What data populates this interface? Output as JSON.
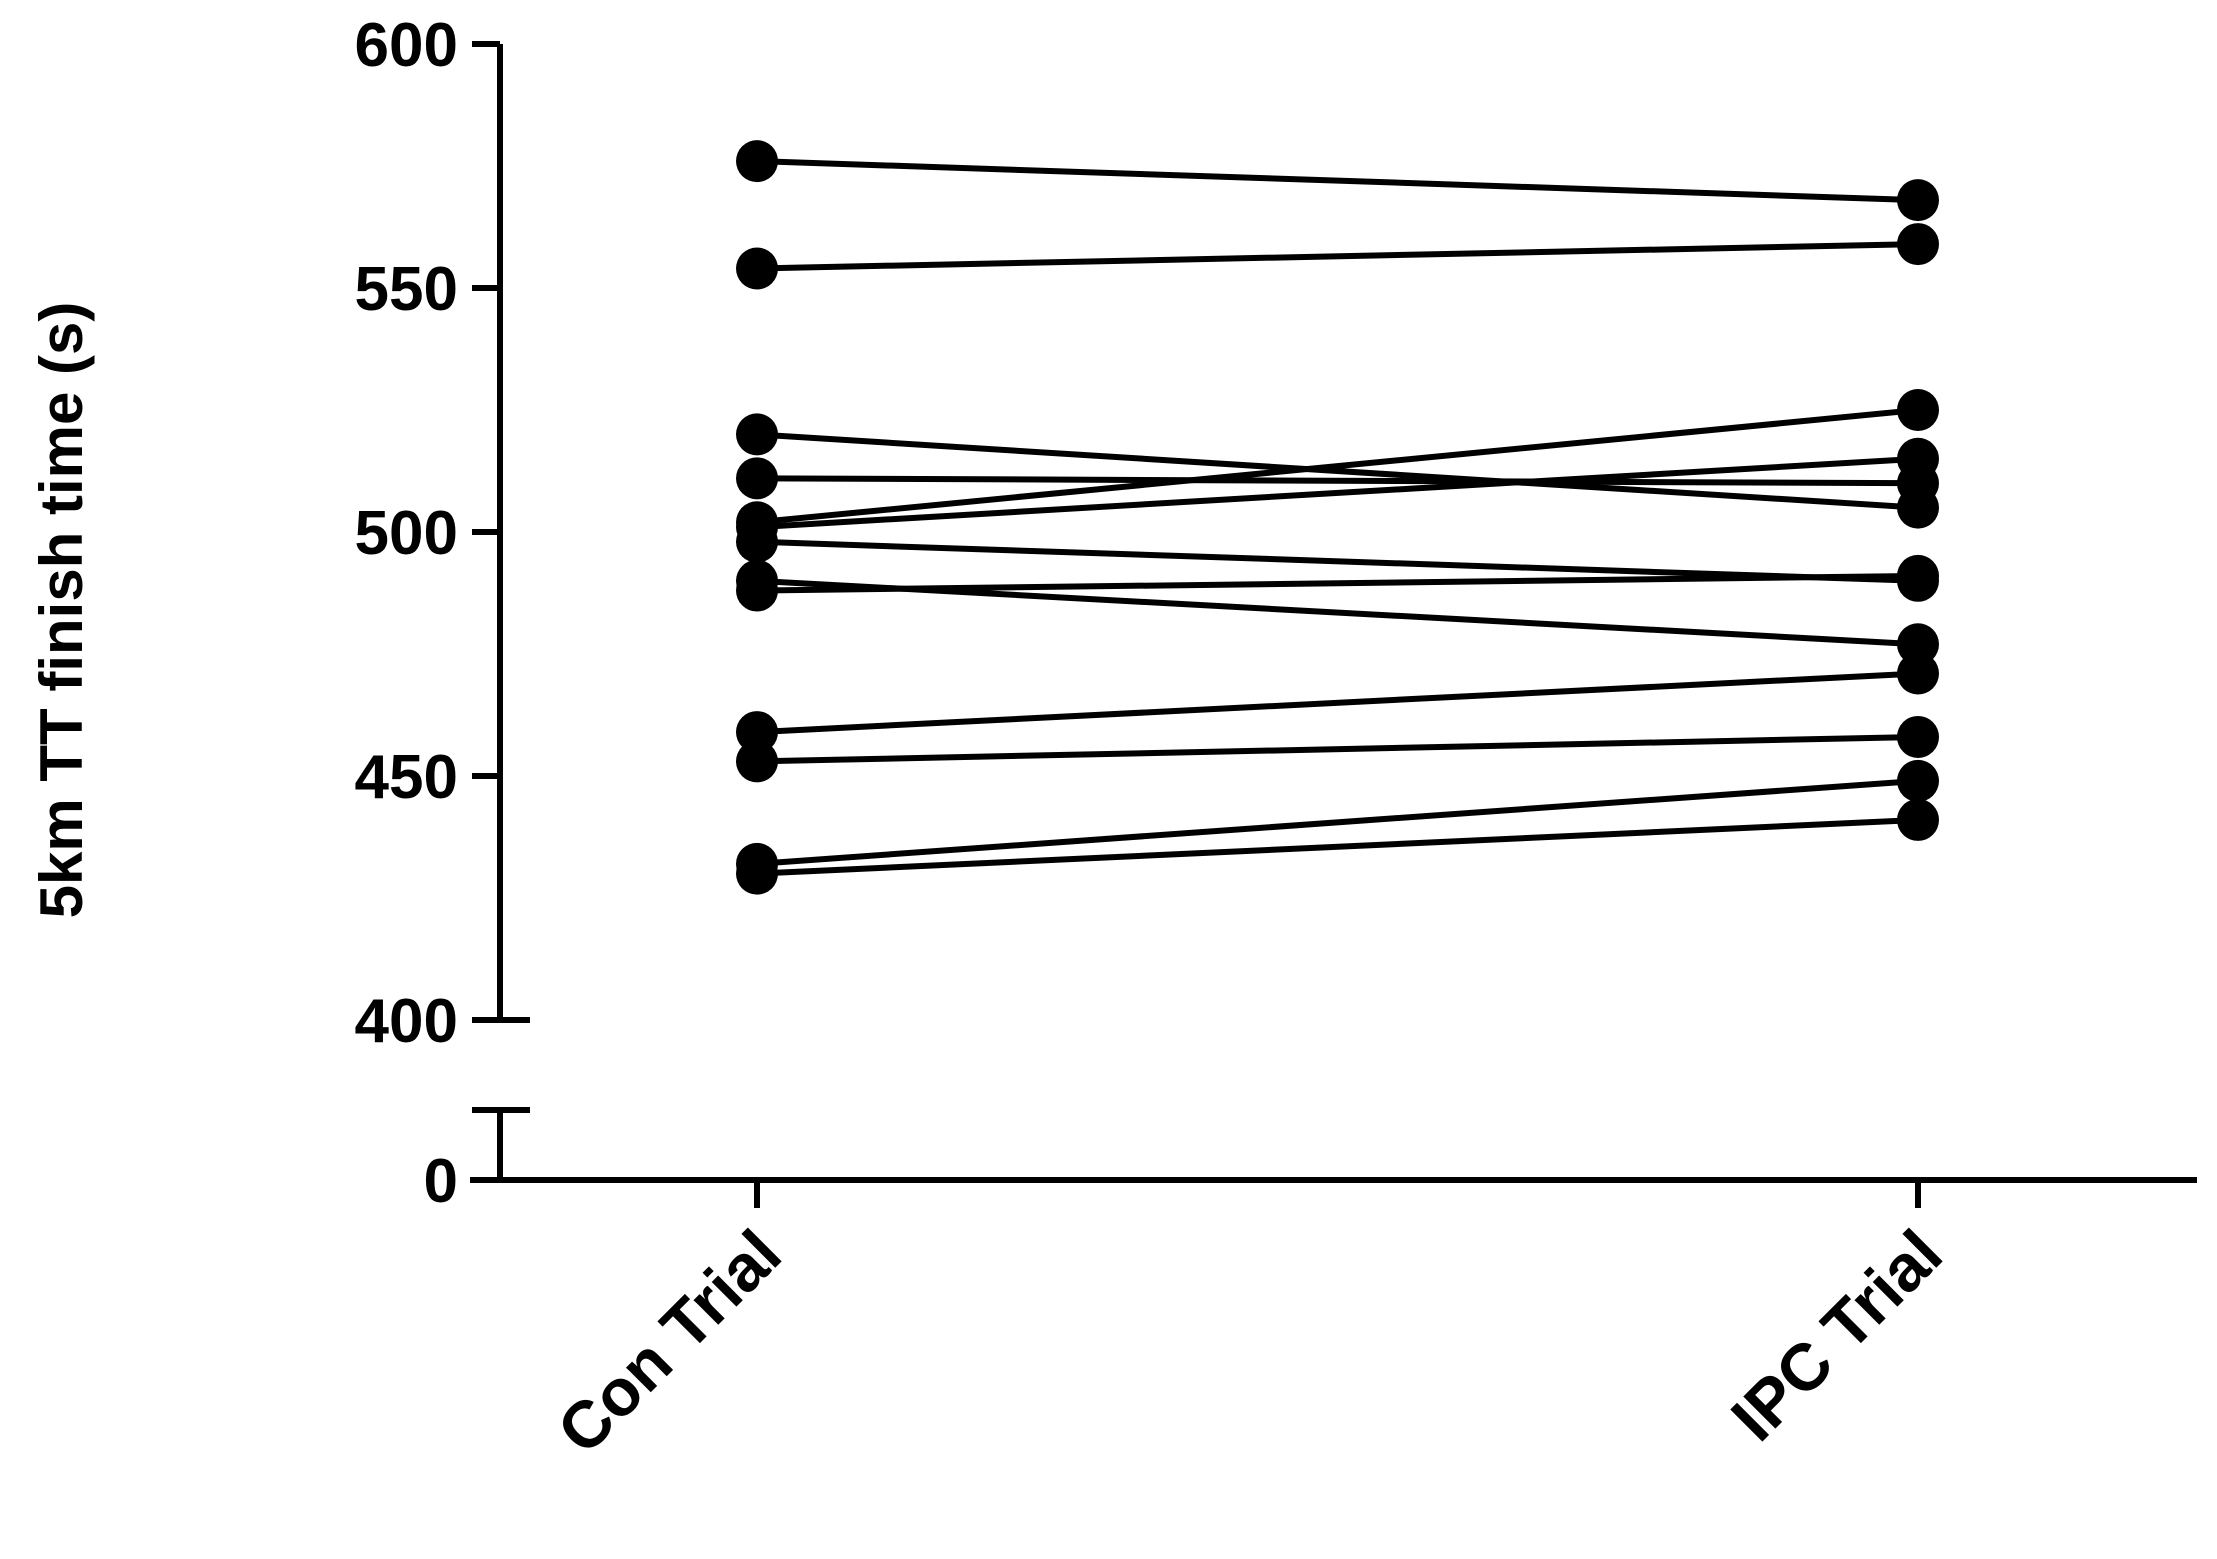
{
  "chart_data": {
    "type": "line",
    "title": "",
    "xlabel": "",
    "ylabel": "5km TT finish time (s)",
    "categories": [
      "Con Trial",
      "IPC Trial"
    ],
    "y_ticks_upper": [
      "600",
      "550",
      "500",
      "450",
      "400"
    ],
    "y_tick_break": "0",
    "ylim": [
      400,
      600
    ],
    "axis_break": true,
    "grid": false,
    "legend": "none",
    "pairs": [
      [
        576,
        568
      ],
      [
        554,
        559
      ],
      [
        520,
        505
      ],
      [
        511,
        510
      ],
      [
        502,
        525
      ],
      [
        501,
        515
      ],
      [
        498,
        490
      ],
      [
        490,
        477
      ],
      [
        488,
        491
      ],
      [
        459,
        471
      ],
      [
        453,
        458
      ],
      [
        432,
        449
      ],
      [
        430,
        441
      ]
    ],
    "colors": {
      "line": "#000000",
      "marker": "#000000",
      "axis": "#000000"
    }
  }
}
